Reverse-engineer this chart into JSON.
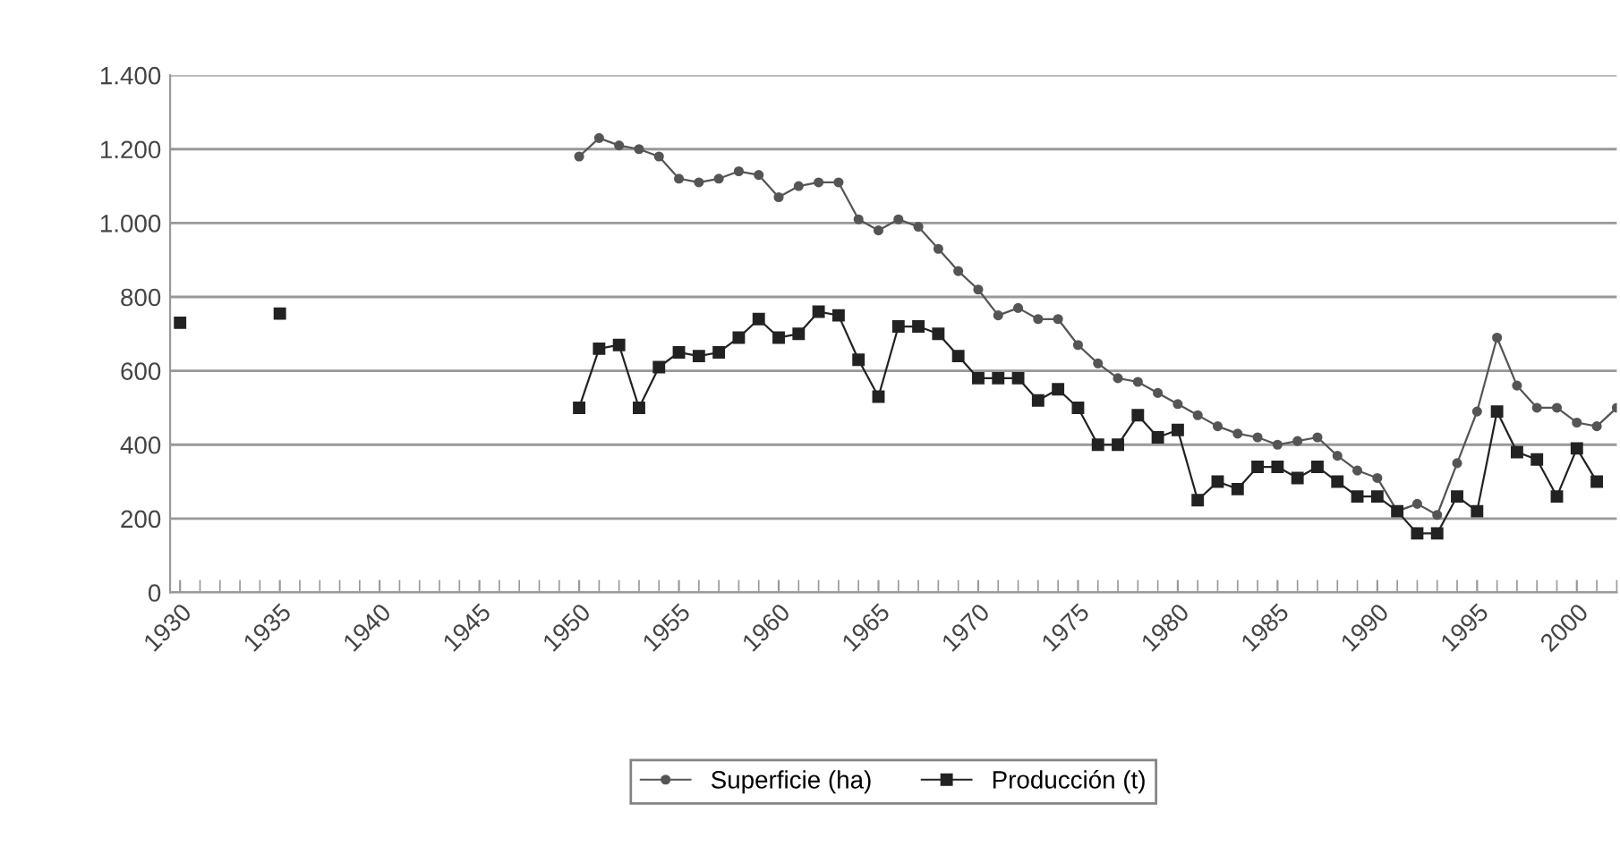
{
  "chart_data": {
    "type": "line",
    "x": [
      1930,
      1931,
      1932,
      1933,
      1934,
      1935,
      1936,
      1937,
      1938,
      1939,
      1940,
      1941,
      1942,
      1943,
      1944,
      1945,
      1946,
      1947,
      1948,
      1949,
      1950,
      1951,
      1952,
      1953,
      1954,
      1955,
      1956,
      1957,
      1958,
      1959,
      1960,
      1961,
      1962,
      1963,
      1964,
      1965,
      1966,
      1967,
      1968,
      1969,
      1970,
      1971,
      1972,
      1973,
      1974,
      1975,
      1976,
      1977,
      1978,
      1979,
      1980,
      1981,
      1982,
      1983,
      1984,
      1985,
      1986,
      1987,
      1988,
      1989,
      1990,
      1991,
      1992,
      1993,
      1994,
      1995,
      1996,
      1997,
      1998,
      1999,
      2000,
      2001,
      2002
    ],
    "series": [
      {
        "name": "Superficie (ha)",
        "color": "#555555",
        "marker": "circle",
        "values": [
          null,
          null,
          null,
          null,
          null,
          null,
          null,
          null,
          null,
          null,
          null,
          null,
          null,
          null,
          null,
          null,
          null,
          null,
          null,
          null,
          1180,
          1230,
          1210,
          1200,
          1180,
          1120,
          1110,
          1120,
          1140,
          1130,
          1070,
          1100,
          1110,
          1110,
          1010,
          980,
          1010,
          990,
          930,
          870,
          820,
          750,
          770,
          740,
          740,
          670,
          620,
          580,
          570,
          540,
          510,
          480,
          450,
          430,
          420,
          400,
          410,
          420,
          370,
          330,
          310,
          220,
          240,
          210,
          350,
          490,
          690,
          560,
          500,
          500,
          460,
          450,
          500
        ]
      },
      {
        "name": "Producción (t)",
        "color": "#222222",
        "marker": "square",
        "values": [
          730,
          null,
          null,
          null,
          null,
          755,
          null,
          null,
          null,
          null,
          null,
          null,
          null,
          null,
          null,
          null,
          null,
          null,
          null,
          null,
          500,
          660,
          670,
          500,
          610,
          650,
          640,
          650,
          690,
          740,
          690,
          700,
          760,
          750,
          630,
          530,
          720,
          720,
          700,
          640,
          580,
          580,
          580,
          520,
          550,
          500,
          400,
          400,
          480,
          420,
          440,
          250,
          300,
          280,
          340,
          340,
          310,
          340,
          300,
          260,
          260,
          220,
          160,
          160,
          260,
          220,
          490,
          380,
          360,
          260,
          390,
          300,
          null
        ]
      }
    ],
    "xlim": [
      1929.5,
      2002
    ],
    "xticks": [
      1930,
      1935,
      1940,
      1945,
      1950,
      1955,
      1960,
      1965,
      1970,
      1975,
      1980,
      1985,
      1990,
      1995,
      2000
    ],
    "ylim": [
      0,
      1400
    ],
    "yticks": [
      {
        "value": 0,
        "label": "0"
      },
      {
        "value": 200,
        "label": "200"
      },
      {
        "value": 400,
        "label": "400"
      },
      {
        "value": 600,
        "label": "600"
      },
      {
        "value": 800,
        "label": "800"
      },
      {
        "value": 1000,
        "label": "1.000"
      },
      {
        "value": 1200,
        "label": "1.200"
      },
      {
        "value": 1400,
        "label": "1.400"
      }
    ],
    "grid": "y",
    "legend": "bottom",
    "line_style": "solid"
  }
}
